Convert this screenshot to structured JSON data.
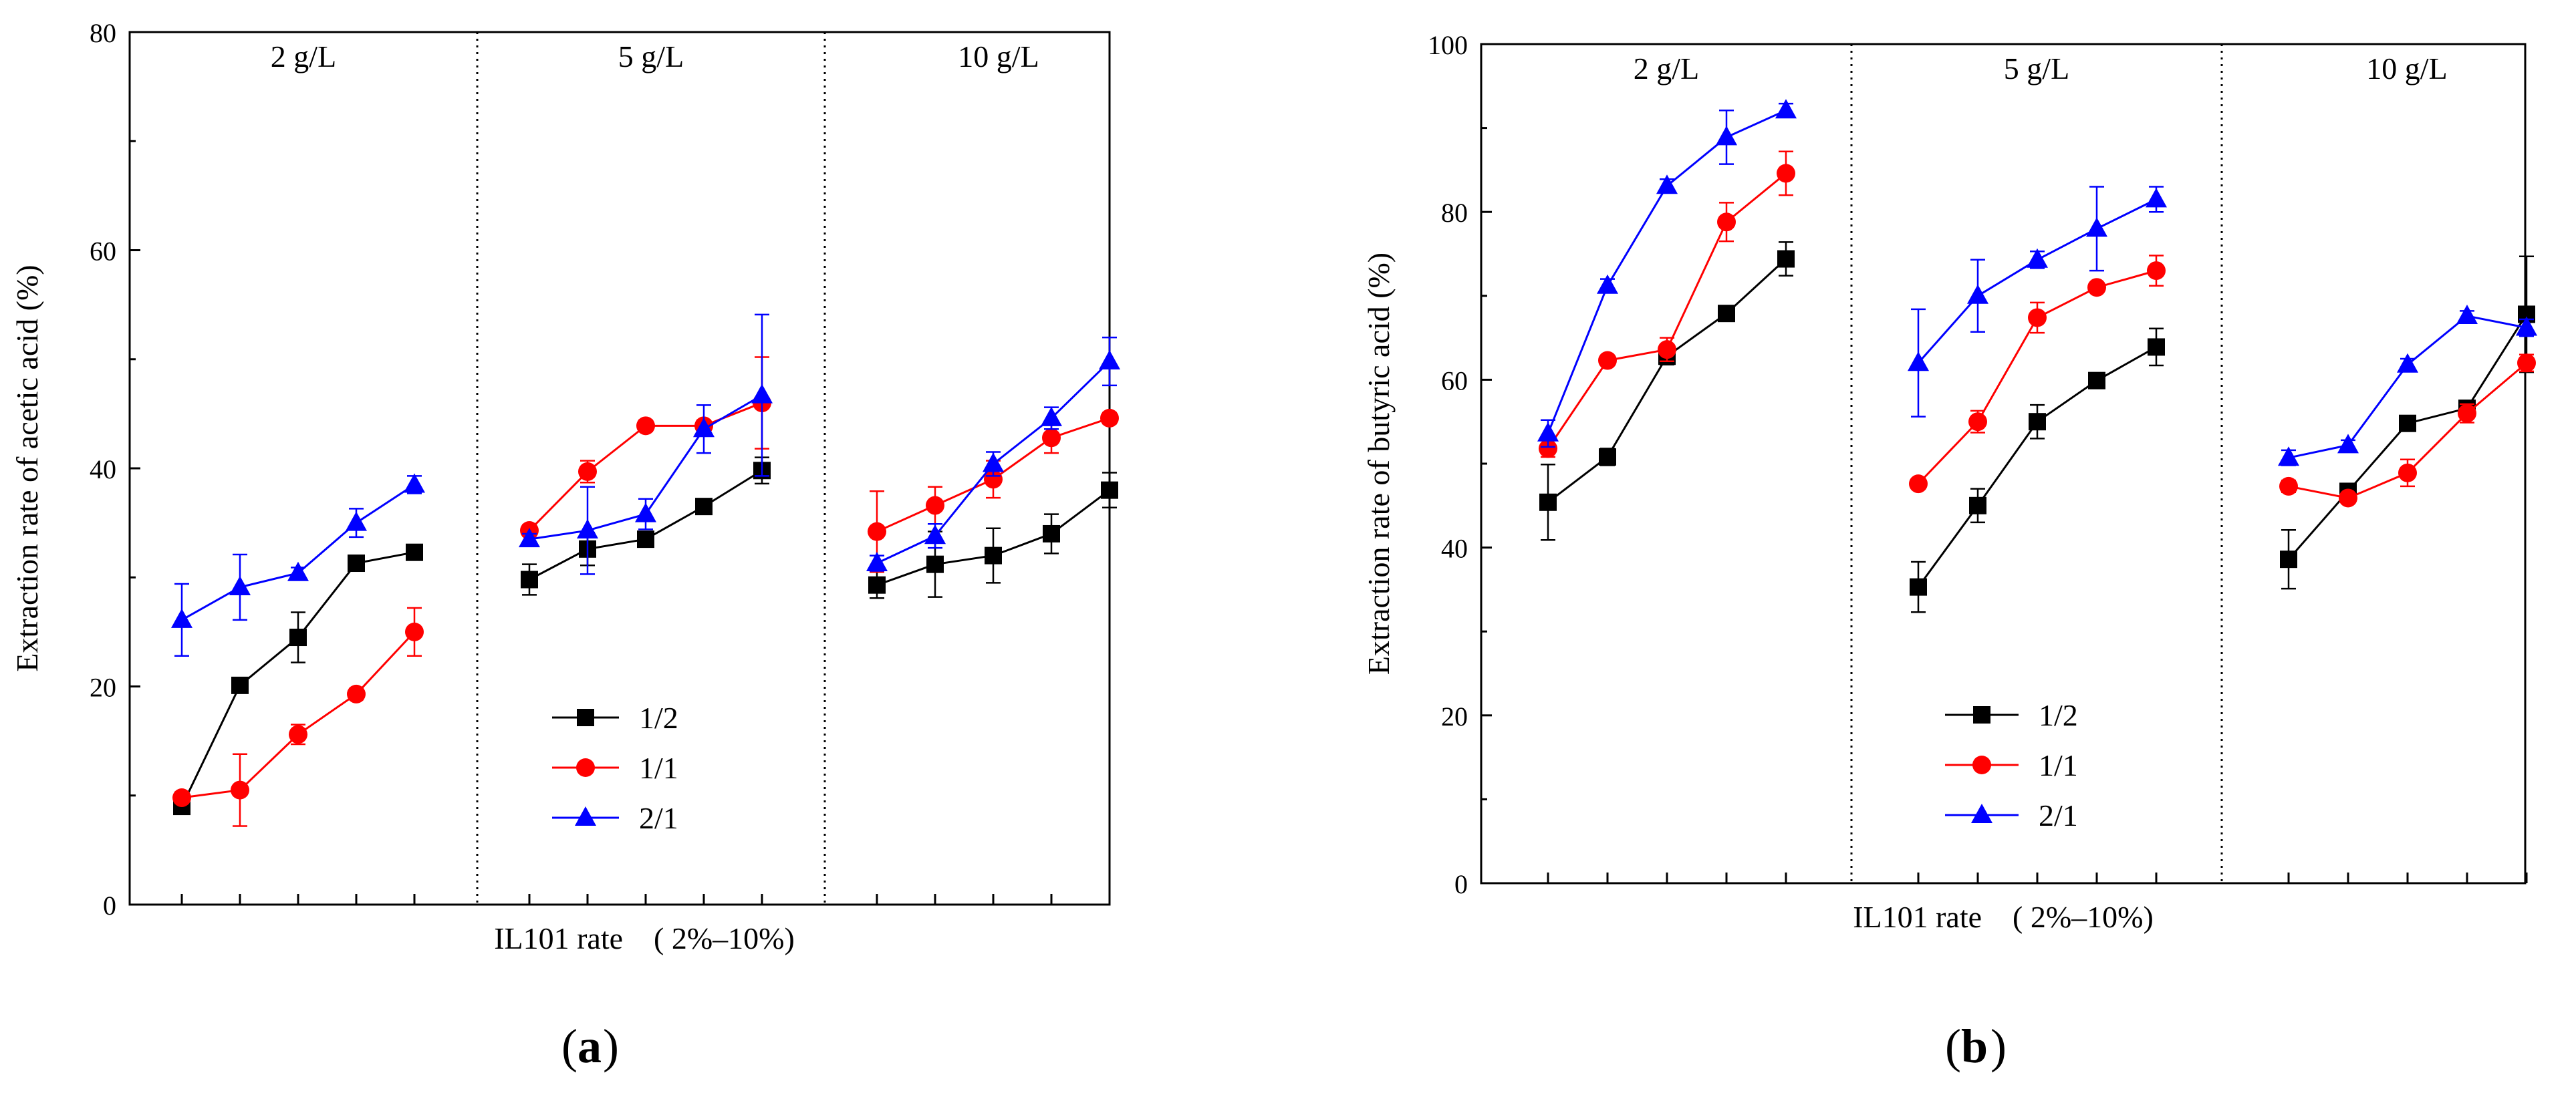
{
  "x_label": "IL101 rate　( 2%–10%)",
  "chart_data": [
    {
      "type": "line",
      "panel_label": "a",
      "ylabel": "Extraction rate of acetic acid (%)",
      "xlabel": "IL101 rate　( 2%–10%)",
      "ylim": [
        0,
        80
      ],
      "yticks": [
        "0",
        "20",
        "40",
        "60",
        "80"
      ],
      "groups": [
        "2 g/L",
        "5 g/L",
        "10 g/L"
      ],
      "points_per_group": 5,
      "legend_position": "bottom-center",
      "series": [
        {
          "name": "1/2",
          "color": "#000000",
          "marker": "square",
          "values": [
            [
              9.0,
              20.1,
              24.5,
              31.3,
              32.3
            ],
            [
              29.8,
              32.6,
              33.5,
              36.5,
              39.8
            ],
            [
              29.3,
              31.2,
              32.0,
              34.0,
              38.0
            ]
          ],
          "errors": [
            [
              0.5,
              0.4,
              2.3,
              0.4,
              0.4
            ],
            [
              1.4,
              1.5,
              0.5,
              0.4,
              1.2
            ],
            [
              1.2,
              3.0,
              2.5,
              1.8,
              1.6
            ]
          ]
        },
        {
          "name": "1/1",
          "color": "#ff0000",
          "marker": "circle",
          "values": [
            [
              9.8,
              10.5,
              15.6,
              19.3,
              25.0
            ],
            [
              34.3,
              39.7,
              43.9,
              43.9,
              46.0
            ],
            [
              34.2,
              36.6,
              39.0,
              42.8,
              44.6
            ]
          ],
          "errors": [
            [
              0.5,
              3.3,
              0.9,
              0.5,
              2.2
            ],
            [
              0.5,
              1.0,
              0.5,
              0.5,
              4.2
            ],
            [
              3.7,
              1.7,
              1.7,
              1.4,
              0.5
            ]
          ]
        },
        {
          "name": "2/1",
          "color": "#0000ff",
          "marker": "triangle",
          "values": [
            [
              26.1,
              29.1,
              30.4,
              35.0,
              38.5
            ],
            [
              33.5,
              34.3,
              35.8,
              43.6,
              46.7
            ],
            [
              31.3,
              33.8,
              40.4,
              44.6,
              49.8
            ]
          ],
          "errors": [
            [
              3.3,
              3.0,
              0.5,
              1.3,
              0.8
            ],
            [
              0.5,
              4.0,
              1.4,
              2.2,
              7.4
            ],
            [
              0.7,
              1.1,
              1.1,
              1.0,
              2.2
            ]
          ]
        }
      ]
    },
    {
      "type": "line",
      "panel_label": "b",
      "ylabel": "Extraction rate of butyric acid (%)",
      "xlabel": "IL101 rate　( 2%–10%)",
      "ylim": [
        0,
        100
      ],
      "yticks": [
        "0",
        "20",
        "40",
        "60",
        "80",
        "100"
      ],
      "groups": [
        "2 g/L",
        "5 g/L",
        "10 g/L"
      ],
      "points_per_group": 5,
      "legend_position": "bottom-center",
      "series": [
        {
          "name": "1/2",
          "color": "#000000",
          "marker": "square",
          "values": [
            [
              45.4,
              50.8,
              62.8,
              67.9,
              74.4
            ],
            [
              35.3,
              45.0,
              55.0,
              59.9,
              63.9
            ],
            [
              38.6,
              46.7,
              54.8,
              56.6,
              67.8
            ]
          ],
          "errors": [
            [
              4.5,
              1.0,
              1.0,
              0.5,
              2.0
            ],
            [
              3.0,
              2.0,
              2.0,
              0.5,
              2.2
            ],
            [
              3.5,
              0.8,
              0.6,
              0.6,
              6.9
            ]
          ]
        },
        {
          "name": "1/1",
          "color": "#ff0000",
          "marker": "circle",
          "values": [
            [
              51.8,
              62.3,
              63.6,
              78.8,
              84.6
            ],
            [
              47.6,
              55.0,
              67.4,
              71.0,
              73.0
            ],
            [
              47.3,
              45.9,
              48.9,
              56.0,
              62.0
            ]
          ],
          "errors": [
            [
              1.0,
              0.5,
              1.4,
              2.3,
              2.6
            ],
            [
              0.6,
              1.3,
              1.8,
              0.6,
              1.8
            ],
            [
              0.7,
              0.6,
              1.6,
              1.1,
              1.0
            ]
          ]
        },
        {
          "name": "2/1",
          "color": "#0000ff",
          "marker": "triangle",
          "values": [
            [
              53.6,
              71.2,
              83.1,
              88.9,
              92.1
            ],
            [
              62.0,
              70.0,
              74.3,
              78.0,
              81.5
            ],
            [
              50.7,
              52.2,
              61.8,
              67.6,
              66.2
            ]
          ],
          "errors": [
            [
              1.6,
              0.8,
              0.8,
              3.2,
              0.8
            ],
            [
              6.4,
              4.3,
              1.0,
              5.0,
              1.5
            ],
            [
              0.9,
              0.6,
              0.7,
              0.6,
              1.0
            ]
          ]
        }
      ]
    }
  ]
}
